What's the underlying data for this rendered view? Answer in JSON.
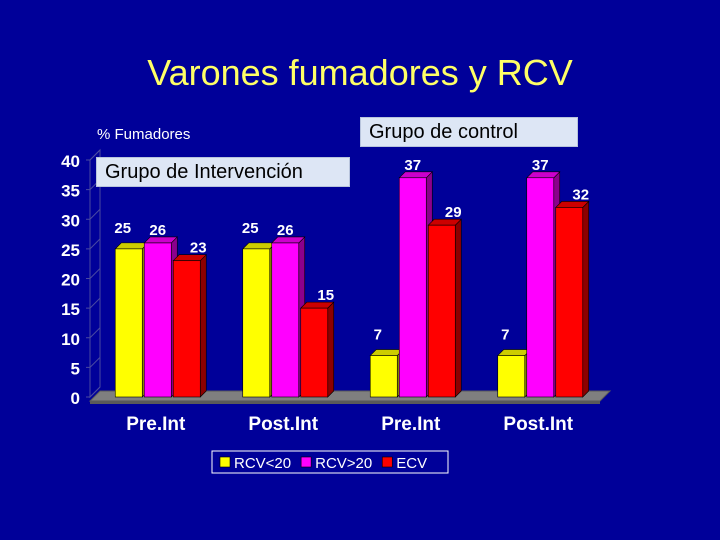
{
  "slide": {
    "title": "Varones fumadores y RCV",
    "group_intervention": "Grupo de Intervención",
    "group_control": "Grupo de control"
  },
  "colors": {
    "background": "#000099",
    "title": "#ffff66",
    "axis_text": "#ffffff",
    "label_box": "#dde6f5",
    "series": [
      "#ffff00",
      "#ff00ff",
      "#ff0000"
    ]
  },
  "chart_data": {
    "type": "bar",
    "ylabel": "% Fumadores",
    "xlabel": "",
    "categories": [
      "Pre.Int",
      "Post.Int",
      "Pre.Int",
      "Post.Int"
    ],
    "series": [
      {
        "name": "RCV<20",
        "values": [
          25,
          25,
          7,
          7
        ]
      },
      {
        "name": "RCV>20",
        "values": [
          26,
          26,
          37,
          37
        ]
      },
      {
        "name": "ECV",
        "values": [
          23,
          15,
          29,
          32
        ]
      }
    ],
    "ylim": [
      0,
      40
    ],
    "yticks": [
      0,
      5,
      10,
      15,
      20,
      25,
      30,
      35,
      40
    ],
    "grid": false,
    "legend": "bottom",
    "bar_style": "3d"
  }
}
